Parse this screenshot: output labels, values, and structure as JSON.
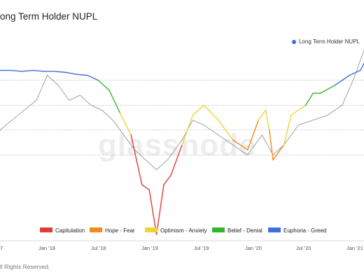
{
  "title": "ong Term Holder NUPL",
  "top_legend": {
    "label": "Long Term Holder NUPL",
    "color": "#3f6fdc"
  },
  "footer": "ll Rights Reserved.",
  "watermark": "glassnode",
  "chart_data": {
    "type": "line",
    "title": "ong Term Holder NUPL",
    "x_ticks": [
      "7",
      "Jan '18",
      "Jul '18",
      "Jan '19",
      "Jul '19",
      "Jan '20",
      "Jul '20",
      "Jan '21"
    ],
    "y_reference_lines": [
      0.75,
      0.5,
      0.25,
      0.0
    ],
    "ylim": [
      -0.8,
      1.1
    ],
    "grid": "horizontal dotted reference lines",
    "legend": [
      {
        "name": "Capitulation",
        "color": "#e03b3b"
      },
      {
        "name": "Hope - Fear",
        "color": "#f28a1e"
      },
      {
        "name": "Optimism - Anxiety",
        "color": "#f2d23a"
      },
      {
        "name": "Belief - Denial",
        "color": "#35b52e"
      },
      {
        "name": "Euphoria - Greed",
        "color": "#3f6fdc"
      }
    ],
    "series": [
      {
        "name": "Long Term Holder NUPL",
        "values": [
          [
            0,
            0.85
          ],
          [
            0.03,
            0.85
          ],
          [
            0.06,
            0.84
          ],
          [
            0.09,
            0.85
          ],
          [
            0.12,
            0.84
          ],
          [
            0.15,
            0.84
          ],
          [
            0.18,
            0.83
          ],
          [
            0.21,
            0.81
          ],
          [
            0.24,
            0.8
          ],
          [
            0.27,
            0.75
          ],
          [
            0.3,
            0.65
          ],
          [
            0.33,
            0.42
          ],
          [
            0.36,
            0.2
          ],
          [
            0.39,
            -0.3
          ],
          [
            0.41,
            -0.35
          ],
          [
            0.43,
            -0.8
          ],
          [
            0.45,
            -0.3
          ],
          [
            0.47,
            -0.2
          ],
          [
            0.5,
            0.1
          ],
          [
            0.53,
            0.4
          ],
          [
            0.56,
            0.5
          ],
          [
            0.6,
            0.35
          ],
          [
            0.64,
            0.15
          ],
          [
            0.68,
            0.05
          ],
          [
            0.71,
            0.35
          ],
          [
            0.73,
            0.45
          ],
          [
            0.74,
            0.25
          ],
          [
            0.75,
            -0.05
          ],
          [
            0.78,
            0.1
          ],
          [
            0.8,
            0.4
          ],
          [
            0.84,
            0.5
          ],
          [
            0.86,
            0.62
          ],
          [
            0.88,
            0.62
          ],
          [
            0.92,
            0.7
          ],
          [
            0.96,
            0.8
          ],
          [
            0.99,
            0.85
          ],
          [
            1.0,
            0.92
          ]
        ]
      },
      {
        "name": "price",
        "values": [
          [
            0,
            0.25
          ],
          [
            0.05,
            0.4
          ],
          [
            0.1,
            0.55
          ],
          [
            0.13,
            0.8
          ],
          [
            0.16,
            0.7
          ],
          [
            0.19,
            0.55
          ],
          [
            0.22,
            0.6
          ],
          [
            0.25,
            0.5
          ],
          [
            0.28,
            0.45
          ],
          [
            0.31,
            0.35
          ],
          [
            0.34,
            0.2
          ],
          [
            0.37,
            0.05
          ],
          [
            0.4,
            -0.05
          ],
          [
            0.43,
            -0.15
          ],
          [
            0.46,
            -0.05
          ],
          [
            0.5,
            0.15
          ],
          [
            0.53,
            0.35
          ],
          [
            0.56,
            0.3
          ],
          [
            0.6,
            0.2
          ],
          [
            0.64,
            0.1
          ],
          [
            0.68,
            0.0
          ],
          [
            0.72,
            0.2
          ],
          [
            0.75,
            0.0
          ],
          [
            0.78,
            0.1
          ],
          [
            0.82,
            0.3
          ],
          [
            0.86,
            0.35
          ],
          [
            0.9,
            0.4
          ],
          [
            0.94,
            0.5
          ],
          [
            0.97,
            0.75
          ],
          [
            1.0,
            1.05
          ]
        ]
      }
    ]
  }
}
